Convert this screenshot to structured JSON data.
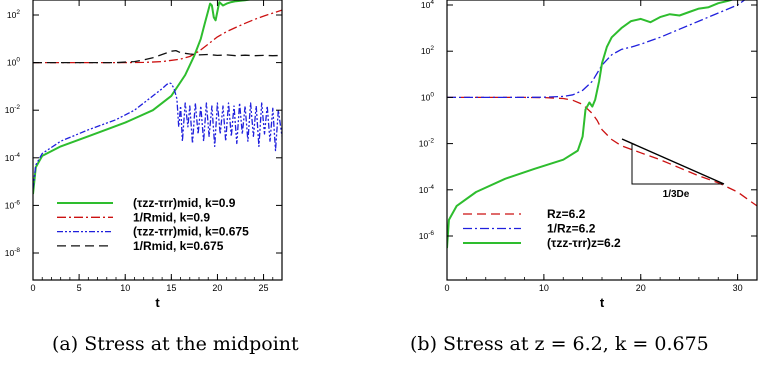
{
  "chart_data": [
    {
      "type": "line",
      "caption": "(a) Stress at the midpoint",
      "xlabel": "t",
      "ylabel": "",
      "xlim": [
        0,
        27
      ],
      "ylim": [
        1e-09,
        1000.0
      ],
      "yscale": "log",
      "grid": false,
      "legend_position": "bottom-right",
      "x_ticks": [
        0,
        5,
        10,
        15,
        20,
        25
      ],
      "x_tick_labels": [
        "0",
        "5",
        "10",
        "15",
        "20",
        "25"
      ],
      "y_tick_exponents": [
        -8,
        -6,
        -4,
        -2,
        0,
        2
      ],
      "y_tick_labels": [
        "10-8",
        "10-6",
        "10-4",
        "10-2",
        "100",
        "102"
      ],
      "legend_text": [
        "(τzz-τrr)mid, k=0.9",
        "1/Rmid, k=0.9",
        "(τzz-τrr)mid, k=0.675",
        "1/Rmid, k=0.675"
      ],
      "series": [
        {
          "name": "(τzz-τrr)mid, k=0.9",
          "color": "#2ebd2e",
          "style": "solid",
          "points": [
            [
              0,
              3e-06
            ],
            [
              0.3,
              4e-05
            ],
            [
              1,
              0.00012
            ],
            [
              3,
              0.0003
            ],
            [
              6,
              0.0008
            ],
            [
              10,
              0.003
            ],
            [
              13,
              0.01
            ],
            [
              15,
              0.04
            ],
            [
              16.5,
              0.3
            ],
            [
              17.5,
              2
            ],
            [
              18.2,
              10
            ],
            [
              18.6,
              40
            ],
            [
              19,
              150
            ],
            [
              19.2,
              300
            ],
            [
              19.4,
              250
            ],
            [
              19.6,
              80
            ],
            [
              19.8,
              60
            ],
            [
              20.2,
              350
            ],
            [
              20.6,
              250
            ],
            [
              21,
              300
            ],
            [
              21.5,
              350
            ],
            [
              22,
              380
            ],
            [
              22.5,
              400
            ],
            [
              23,
              420
            ],
            [
              23.5,
              450
            ],
            [
              24,
              600
            ],
            [
              24.5,
              700
            ],
            [
              25,
              750
            ],
            [
              25.5,
              760
            ],
            [
              26,
              780
            ],
            [
              27,
              800
            ]
          ]
        },
        {
          "name": "1/Rmid, k=0.9",
          "color": "#cc1111",
          "style": "dashdot",
          "points": [
            [
              0,
              1
            ],
            [
              2,
              1
            ],
            [
              5,
              1
            ],
            [
              8,
              1
            ],
            [
              10,
              1
            ],
            [
              12,
              1.02
            ],
            [
              14,
              1.1
            ],
            [
              16,
              1.4
            ],
            [
              17,
              1.8
            ],
            [
              18,
              3
            ],
            [
              19,
              6
            ],
            [
              20,
              12
            ],
            [
              21,
              20
            ],
            [
              22,
              30
            ],
            [
              23,
              45
            ],
            [
              24,
              65
            ],
            [
              25,
              90
            ],
            [
              26,
              120
            ],
            [
              27,
              160
            ]
          ]
        },
        {
          "name": "(τzz-τrr)mid, k=0.675",
          "color": "#2020dd",
          "style": "dashdotdot",
          "points": [
            [
              0,
              5e-06
            ],
            [
              0.3,
              5e-05
            ],
            [
              1,
              0.00015
            ],
            [
              3,
              0.0005
            ],
            [
              6,
              0.0015
            ],
            [
              9,
              0.004
            ],
            [
              11,
              0.01
            ],
            [
              13,
              0.04
            ],
            [
              14,
              0.08
            ],
            [
              14.5,
              0.12
            ],
            [
              14.8,
              0.14
            ],
            [
              15,
              0.13
            ],
            [
              15.3,
              0.08
            ],
            [
              15.6,
              0.03
            ],
            [
              15.8,
              0.002
            ],
            [
              16,
              0.015
            ],
            [
              16.2,
              0.0005
            ],
            [
              16.5,
              0.02
            ],
            [
              16.8,
              0.002
            ],
            [
              17,
              0.015
            ],
            [
              17.3,
              0.0004
            ],
            [
              17.6,
              0.02
            ],
            [
              17.9,
              0.001
            ],
            [
              18.2,
              0.015
            ],
            [
              18.5,
              0.0005
            ],
            [
              18.8,
              0.02
            ],
            [
              19.1,
              0.0008
            ],
            [
              19.4,
              0.015
            ],
            [
              19.7,
              0.0003
            ],
            [
              20,
              0.02
            ],
            [
              20.3,
              0.001
            ],
            [
              20.6,
              0.015
            ],
            [
              20.9,
              0.0005
            ],
            [
              21.2,
              0.02
            ],
            [
              21.5,
              0.0008
            ],
            [
              21.8,
              0.015
            ],
            [
              22.1,
              0.0004
            ],
            [
              22.4,
              0.02
            ],
            [
              22.7,
              0.001
            ],
            [
              23,
              0.015
            ],
            [
              23.3,
              0.0005
            ],
            [
              23.6,
              0.02
            ],
            [
              23.9,
              0.0008
            ],
            [
              24.2,
              0.015
            ],
            [
              24.5,
              0.0003
            ],
            [
              24.8,
              0.02
            ],
            [
              25.1,
              0.001
            ],
            [
              25.4,
              0.015
            ],
            [
              25.7,
              0.0005
            ],
            [
              26,
              0.012
            ],
            [
              26.3,
              0.0002
            ],
            [
              26.6,
              0.01
            ],
            [
              27,
              0.0008
            ]
          ]
        },
        {
          "name": "1/Rmid, k=0.675",
          "color": "#111111",
          "style": "dashed",
          "points": [
            [
              0,
              1
            ],
            [
              3,
              1
            ],
            [
              6,
              1
            ],
            [
              9,
              1
            ],
            [
              11,
              1.1
            ],
            [
              12,
              1.3
            ],
            [
              13,
              1.6
            ],
            [
              14,
              2.2
            ],
            [
              15,
              3
            ],
            [
              15.5,
              3.2
            ],
            [
              16,
              2.6
            ],
            [
              17,
              2.3
            ],
            [
              18,
              2.1
            ],
            [
              19,
              2.2
            ],
            [
              20,
              2
            ],
            [
              21,
              2.1
            ],
            [
              22,
              1.95
            ],
            [
              23,
              2.05
            ],
            [
              24,
              1.95
            ],
            [
              25,
              2
            ],
            [
              26,
              1.95
            ],
            [
              27,
              2
            ]
          ]
        }
      ]
    },
    {
      "type": "line",
      "caption": "(b) Stress at z = 6.2, k = 0.675",
      "xlabel": "t",
      "ylabel": "",
      "xlim": [
        0,
        32
      ],
      "ylim": [
        1e-08,
        100000.0
      ],
      "yscale": "log",
      "grid": false,
      "legend_position": "bottom-right",
      "x_ticks": [
        0,
        10,
        20,
        30
      ],
      "x_tick_labels": [
        "0",
        "10",
        "20",
        "30"
      ],
      "y_tick_exponents": [
        -6,
        -4,
        -2,
        0,
        2,
        4
      ],
      "y_tick_labels": [
        "10-6",
        "10-4",
        "10-2",
        "100",
        "102",
        "104"
      ],
      "annotation": "1/3De",
      "legend_text": [
        "Rz=6.2",
        "1/Rz=6.2",
        "(τzz-τrr)z=6.2"
      ],
      "series": [
        {
          "name": "Rz=6.2",
          "color": "#cc1111",
          "style": "dashed",
          "points": [
            [
              0,
              1
            ],
            [
              5,
              1
            ],
            [
              8,
              1
            ],
            [
              10,
              0.98
            ],
            [
              12,
              0.9
            ],
            [
              13,
              0.75
            ],
            [
              14,
              0.5
            ],
            [
              15,
              0.2
            ],
            [
              15.5,
              0.1
            ],
            [
              16,
              0.04
            ],
            [
              17,
              0.015
            ],
            [
              18,
              0.008
            ],
            [
              20,
              0.004
            ],
            [
              22,
              0.002
            ],
            [
              24,
              0.0009
            ],
            [
              26,
              0.0004
            ],
            [
              28,
              0.0002
            ],
            [
              30,
              8e-05
            ],
            [
              31,
              4e-05
            ],
            [
              32,
              2e-05
            ]
          ]
        },
        {
          "name": "1/Rz=6.2",
          "color": "#2020dd",
          "style": "dashdot",
          "points": [
            [
              0,
              1
            ],
            [
              5,
              1
            ],
            [
              8,
              1
            ],
            [
              10,
              1.02
            ],
            [
              12,
              1.1
            ],
            [
              13,
              1.3
            ],
            [
              14,
              2
            ],
            [
              15,
              5
            ],
            [
              16,
              25
            ],
            [
              17,
              70
            ],
            [
              18,
              120
            ],
            [
              19,
              150
            ],
            [
              20,
              200
            ],
            [
              22,
              400
            ],
            [
              24,
              900
            ],
            [
              26,
              2000
            ],
            [
              28,
              4500
            ],
            [
              30,
              10000
            ],
            [
              31,
              20000
            ],
            [
              32,
              30000
            ]
          ]
        },
        {
          "name": "(τzz-τrr)z=6.2",
          "color": "#2ebd2e",
          "style": "solid",
          "points": [
            [
              0,
              3e-07
            ],
            [
              0.2,
              5e-06
            ],
            [
              1,
              2e-05
            ],
            [
              3,
              8e-05
            ],
            [
              6,
              0.0003
            ],
            [
              9,
              0.0008
            ],
            [
              12,
              0.002
            ],
            [
              13.5,
              0.005
            ],
            [
              14,
              0.02
            ],
            [
              14.3,
              0.3
            ],
            [
              14.7,
              0.6
            ],
            [
              15,
              0.4
            ],
            [
              15.3,
              0.8
            ],
            [
              15.7,
              5
            ],
            [
              16,
              30
            ],
            [
              16.5,
              150
            ],
            [
              17,
              400
            ],
            [
              18,
              1000
            ],
            [
              19,
              2000
            ],
            [
              20,
              2500
            ],
            [
              21,
              1800
            ],
            [
              22,
              3000
            ],
            [
              23,
              4000
            ],
            [
              24,
              3500
            ],
            [
              25,
              5000
            ],
            [
              26,
              7000
            ],
            [
              27,
              8000
            ],
            [
              28,
              12000
            ],
            [
              29,
              15000
            ],
            [
              30,
              20000
            ],
            [
              30.5,
              25000
            ],
            [
              31,
              22000
            ],
            [
              31.5,
              28000
            ],
            [
              32,
              30000
            ]
          ]
        }
      ]
    }
  ]
}
